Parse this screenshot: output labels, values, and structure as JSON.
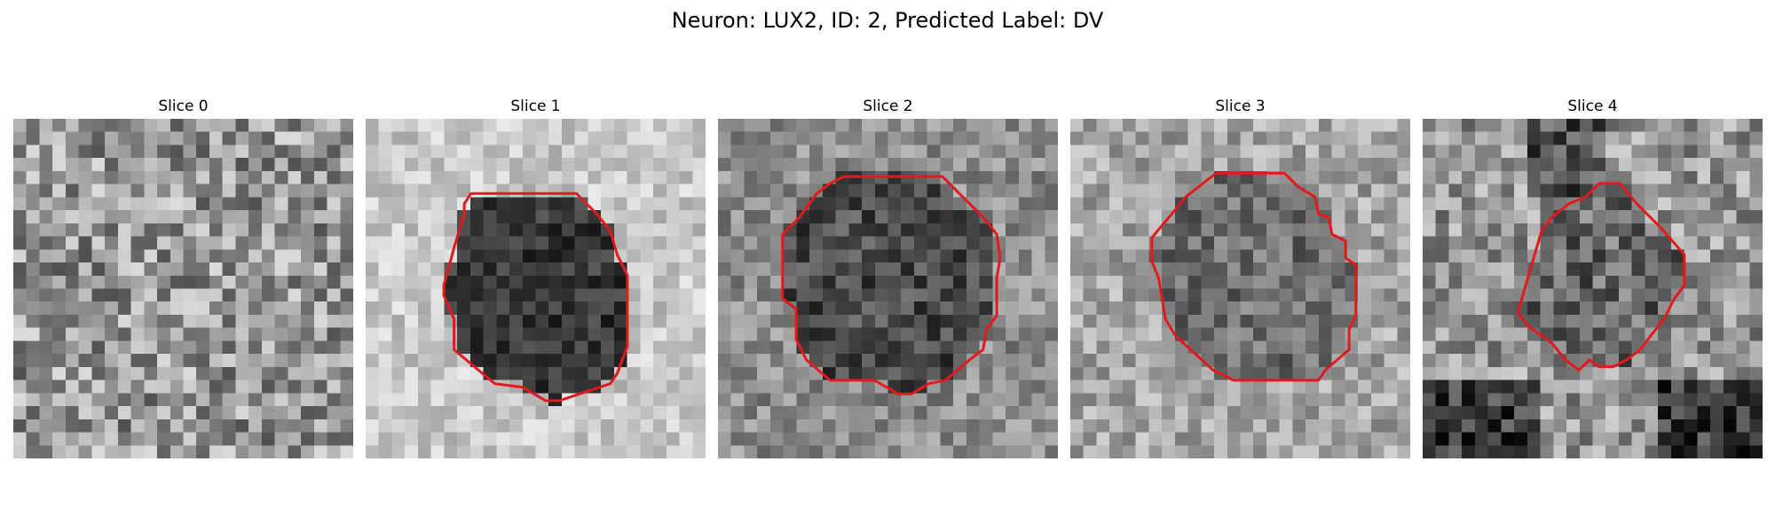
{
  "figure": {
    "title": "Neuron: LUX2, ID: 2, Predicted Label: DV"
  },
  "slices": [
    {
      "label": "Slice 0",
      "has_contour": false,
      "contour": []
    },
    {
      "label": "Slice 1",
      "has_contour": true,
      "contour": [
        [
          0.31,
          0.22
        ],
        [
          0.62,
          0.22
        ],
        [
          0.68,
          0.28
        ],
        [
          0.72,
          0.33
        ],
        [
          0.74,
          0.4
        ],
        [
          0.77,
          0.46
        ],
        [
          0.77,
          0.67
        ],
        [
          0.74,
          0.75
        ],
        [
          0.72,
          0.78
        ],
        [
          0.63,
          0.81
        ],
        [
          0.57,
          0.83
        ],
        [
          0.53,
          0.83
        ],
        [
          0.46,
          0.79
        ],
        [
          0.38,
          0.78
        ],
        [
          0.26,
          0.68
        ],
        [
          0.26,
          0.59
        ],
        [
          0.23,
          0.52
        ],
        [
          0.23,
          0.49
        ],
        [
          0.26,
          0.38
        ],
        [
          0.29,
          0.28
        ],
        [
          0.29,
          0.25
        ]
      ]
    },
    {
      "label": "Slice 2",
      "has_contour": true,
      "contour": [
        [
          0.37,
          0.17
        ],
        [
          0.66,
          0.17
        ],
        [
          0.72,
          0.23
        ],
        [
          0.78,
          0.29
        ],
        [
          0.82,
          0.34
        ],
        [
          0.83,
          0.41
        ],
        [
          0.82,
          0.47
        ],
        [
          0.82,
          0.58
        ],
        [
          0.79,
          0.62
        ],
        [
          0.78,
          0.68
        ],
        [
          0.74,
          0.71
        ],
        [
          0.67,
          0.77
        ],
        [
          0.62,
          0.78
        ],
        [
          0.57,
          0.81
        ],
        [
          0.53,
          0.81
        ],
        [
          0.46,
          0.77
        ],
        [
          0.33,
          0.77
        ],
        [
          0.26,
          0.71
        ],
        [
          0.23,
          0.65
        ],
        [
          0.23,
          0.56
        ],
        [
          0.19,
          0.53
        ],
        [
          0.19,
          0.34
        ],
        [
          0.24,
          0.29
        ],
        [
          0.29,
          0.22
        ],
        [
          0.33,
          0.19
        ]
      ]
    },
    {
      "label": "Slice 3",
      "has_contour": true,
      "contour": [
        [
          0.43,
          0.16
        ],
        [
          0.63,
          0.16
        ],
        [
          0.67,
          0.2
        ],
        [
          0.72,
          0.23
        ],
        [
          0.73,
          0.28
        ],
        [
          0.76,
          0.29
        ],
        [
          0.77,
          0.34
        ],
        [
          0.81,
          0.36
        ],
        [
          0.81,
          0.41
        ],
        [
          0.84,
          0.43
        ],
        [
          0.84,
          0.58
        ],
        [
          0.82,
          0.62
        ],
        [
          0.82,
          0.68
        ],
        [
          0.75,
          0.74
        ],
        [
          0.73,
          0.77
        ],
        [
          0.63,
          0.77
        ],
        [
          0.48,
          0.77
        ],
        [
          0.42,
          0.74
        ],
        [
          0.31,
          0.64
        ],
        [
          0.28,
          0.59
        ],
        [
          0.27,
          0.53
        ],
        [
          0.26,
          0.47
        ],
        [
          0.24,
          0.42
        ],
        [
          0.24,
          0.35
        ],
        [
          0.29,
          0.29
        ],
        [
          0.34,
          0.23
        ],
        [
          0.39,
          0.19
        ]
      ]
    },
    {
      "label": "Slice 4",
      "has_contour": true,
      "contour": [
        [
          0.52,
          0.19
        ],
        [
          0.58,
          0.19
        ],
        [
          0.63,
          0.25
        ],
        [
          0.7,
          0.32
        ],
        [
          0.77,
          0.4
        ],
        [
          0.77,
          0.49
        ],
        [
          0.74,
          0.53
        ],
        [
          0.71,
          0.59
        ],
        [
          0.67,
          0.64
        ],
        [
          0.64,
          0.68
        ],
        [
          0.6,
          0.71
        ],
        [
          0.56,
          0.73
        ],
        [
          0.52,
          0.73
        ],
        [
          0.49,
          0.71
        ],
        [
          0.46,
          0.74
        ],
        [
          0.42,
          0.71
        ],
        [
          0.38,
          0.66
        ],
        [
          0.31,
          0.61
        ],
        [
          0.28,
          0.57
        ],
        [
          0.35,
          0.33
        ],
        [
          0.38,
          0.29
        ],
        [
          0.43,
          0.25
        ],
        [
          0.48,
          0.23
        ]
      ]
    }
  ],
  "colors": {
    "contour": "#e31a1c"
  }
}
